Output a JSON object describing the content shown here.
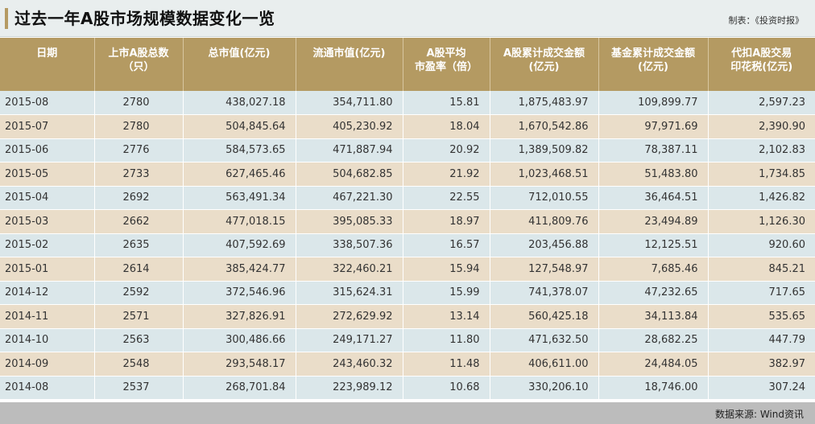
{
  "page": {
    "title": "过去一年A股市场规模数据变化一览",
    "credit": "制表：《投资时报》",
    "source": "数据来源: Wind资讯"
  },
  "colors": {
    "header_bg": "#b49a62",
    "row_blue": "#dbe7ea",
    "row_tan": "#eaddc9",
    "footer_bg": "#bcbcbc"
  },
  "chart_data": {
    "type": "table",
    "title": "过去一年A股市场规模数据变化一览",
    "columns": [
      {
        "line1": "日期",
        "line2": ""
      },
      {
        "line1": "上市A股总数",
        "line2": "（只）"
      },
      {
        "line1": "总市值(亿元)",
        "line2": ""
      },
      {
        "line1": "流通市值(亿元)",
        "line2": ""
      },
      {
        "line1": "A股平均",
        "line2": "市盈率（倍）"
      },
      {
        "line1": "A股累计成交金额",
        "line2": "(亿元)"
      },
      {
        "line1": "基金累计成交金额",
        "line2": "(亿元)"
      },
      {
        "line1": "代扣A股交易",
        "line2": "印花税(亿元)"
      }
    ],
    "rows": [
      [
        "2015-08",
        "2780",
        "438,027.18",
        "354,711.80",
        "15.81",
        "1,875,483.97",
        "109,899.77",
        "2,597.23"
      ],
      [
        "2015-07",
        "2780",
        "504,845.64",
        "405,230.92",
        "18.04",
        "1,670,542.86",
        "97,971.69",
        "2,390.90"
      ],
      [
        "2015-06",
        "2776",
        "584,573.65",
        "471,887.94",
        "20.92",
        "1,389,509.82",
        "78,387.11",
        "2,102.83"
      ],
      [
        "2015-05",
        "2733",
        "627,465.46",
        "504,682.85",
        "21.92",
        "1,023,468.51",
        "51,483.80",
        "1,734.85"
      ],
      [
        "2015-04",
        "2692",
        "563,491.34",
        "467,221.30",
        "22.55",
        "712,010.55",
        "36,464.51",
        "1,426.82"
      ],
      [
        "2015-03",
        "2662",
        "477,018.15",
        "395,085.33",
        "18.97",
        "411,809.76",
        "23,494.89",
        "1,126.30"
      ],
      [
        "2015-02",
        "2635",
        "407,592.69",
        "338,507.36",
        "16.57",
        "203,456.88",
        "12,125.51",
        "920.60"
      ],
      [
        "2015-01",
        "2614",
        "385,424.77",
        "322,460.21",
        "15.94",
        "127,548.97",
        "7,685.46",
        "845.21"
      ],
      [
        "2014-12",
        "2592",
        "372,546.96",
        "315,624.31",
        "15.99",
        "741,378.07",
        "47,232.65",
        "717.65"
      ],
      [
        "2014-11",
        "2571",
        "327,826.91",
        "272,629.92",
        "13.14",
        "560,425.18",
        "34,113.84",
        "535.65"
      ],
      [
        "2014-10",
        "2563",
        "300,486.66",
        "249,171.27",
        "11.80",
        "471,632.50",
        "28,682.25",
        "447.79"
      ],
      [
        "2014-09",
        "2548",
        "293,548.17",
        "243,460.32",
        "11.48",
        "406,611.00",
        "24,484.05",
        "382.97"
      ],
      [
        "2014-08",
        "2537",
        "268,701.84",
        "223,989.12",
        "10.68",
        "330,206.10",
        "18,746.00",
        "307.24"
      ]
    ]
  }
}
